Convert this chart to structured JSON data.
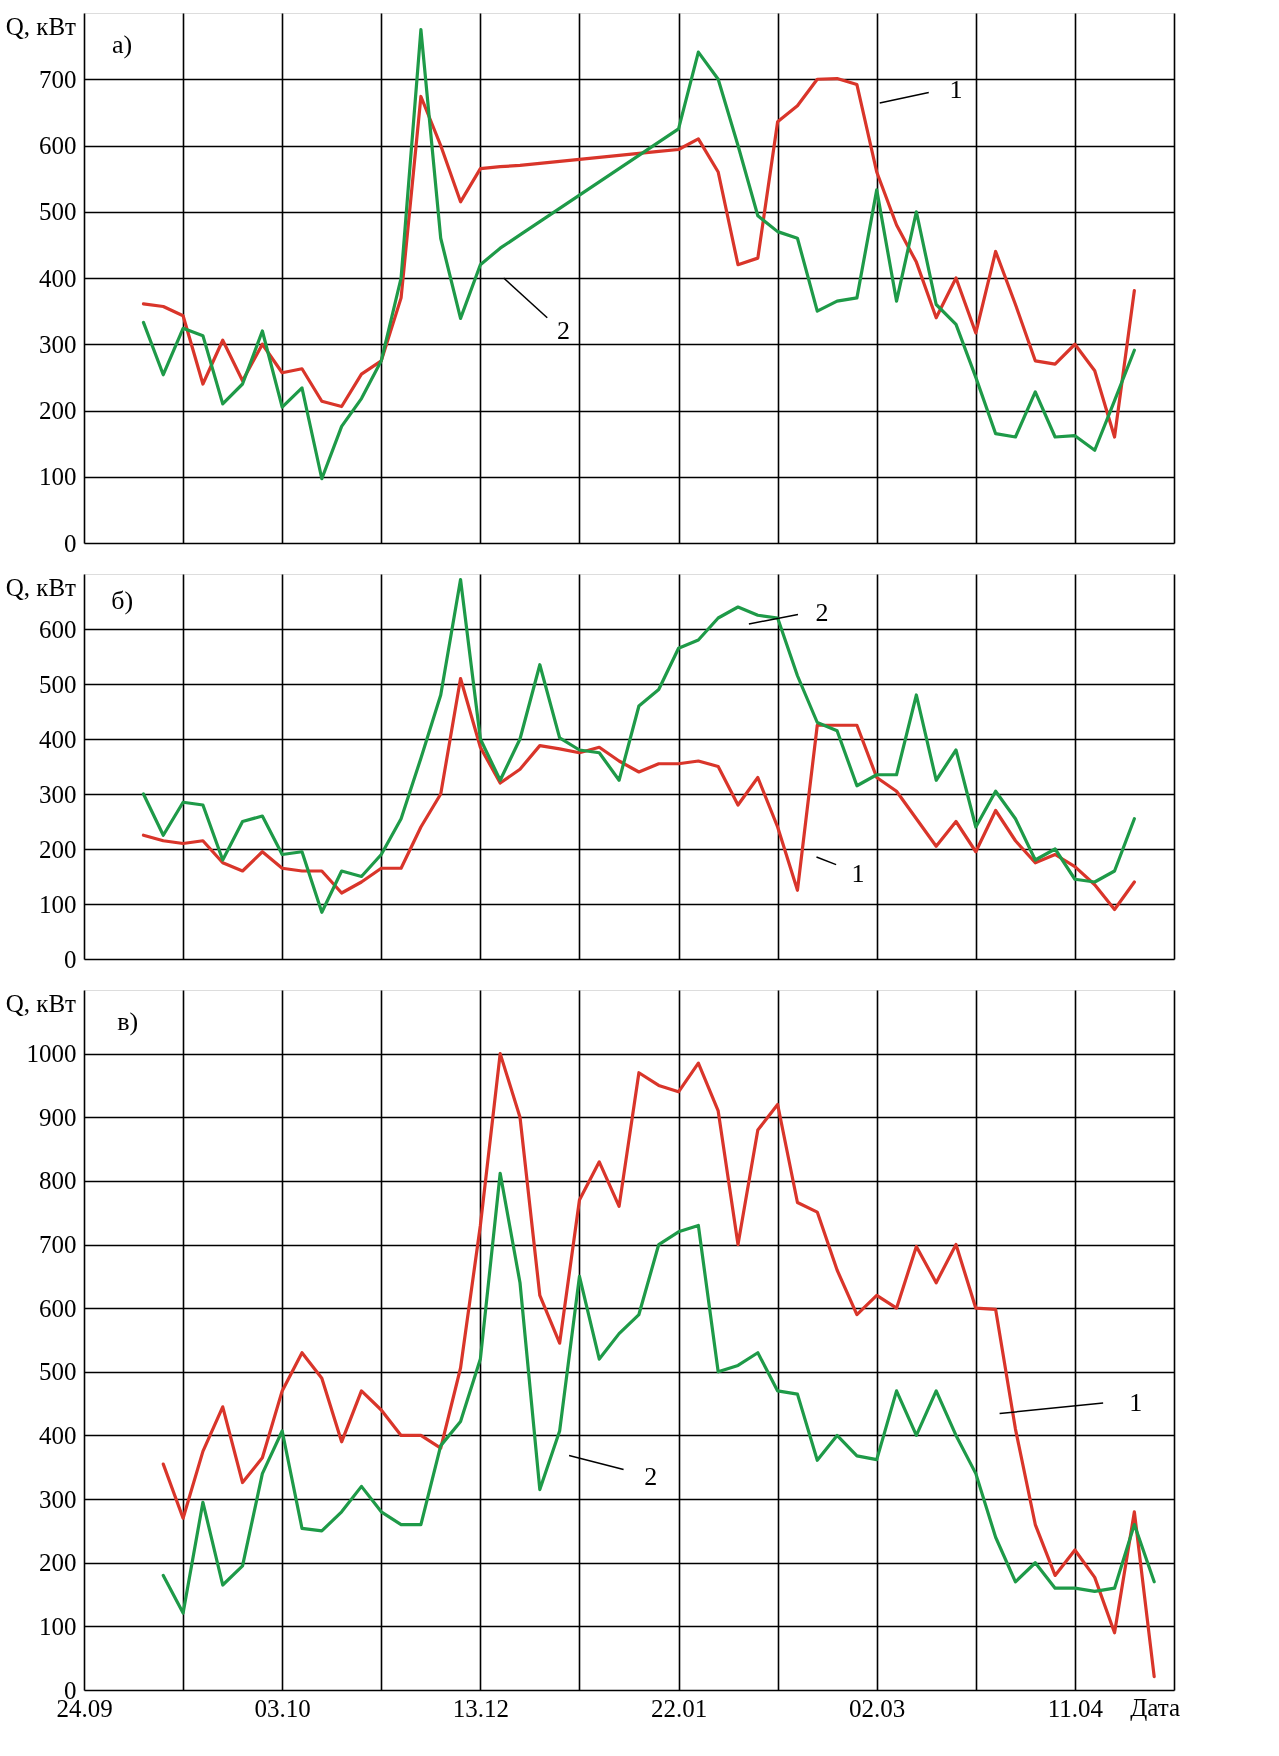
{
  "chart_data": [
    {
      "type": "line",
      "ylabel": "Q, кВт",
      "categories": [
        "24.09",
        null,
        null,
        null,
        null,
        null,
        null,
        null,
        null,
        null,
        "03.10",
        null,
        null,
        null,
        null,
        null,
        null,
        null,
        null,
        null,
        "13.12",
        null,
        null,
        null,
        null,
        null,
        null,
        null,
        null,
        null,
        "22.01",
        null,
        null,
        null,
        null,
        null,
        null,
        null,
        null,
        null,
        "02.03",
        null,
        null,
        null,
        null,
        null,
        null,
        null,
        null,
        null,
        "11.04",
        null,
        null,
        null,
        null,
        null
      ],
      "ylim": [
        0,
        800
      ],
      "yticks": [
        0,
        100,
        200,
        300,
        400,
        500,
        600,
        700
      ],
      "grid": true,
      "tick_labels": "y",
      "annotations": [
        "а)",
        "1",
        "2"
      ],
      "series": [
        {
          "color": "#d9352a",
          "values": [
            null,
            null,
            null,
            361,
            357,
            343,
            240,
            306,
            245,
            300,
            257,
            263,
            214,
            206,
            255,
            275,
            370,
            674,
            600,
            515,
            565,
            568,
            570,
            573,
            576,
            579,
            582,
            585,
            588,
            591,
            594,
            610,
            560,
            420,
            430,
            636,
            660,
            700,
            701,
            692,
            560,
            480,
            424,
            340,
            400,
            317,
            440,
            360,
            275,
            270,
            300,
            260,
            160,
            381,
            null,
            null
          ]
        },
        {
          "color": "#1e9a48",
          "values": [
            null,
            null,
            null,
            333,
            254,
            324,
            313,
            210,
            240,
            320,
            205,
            234,
            97,
            176,
            218,
            275,
            400,
            775,
            460,
            339,
            420,
            445,
            465,
            485,
            505,
            525,
            545,
            565,
            585,
            605,
            625,
            741,
            700,
            600,
            494,
            470,
            460,
            350,
            365,
            370,
            533,
            365,
            500,
            360,
            330,
            250,
            165,
            160,
            228,
            160,
            162,
            140,
            215,
            291,
            null,
            null
          ]
        }
      ]
    },
    {
      "type": "line",
      "ylabel": "Q, кВт",
      "categories": [
        "24.09",
        null,
        null,
        null,
        null,
        null,
        null,
        null,
        null,
        null,
        "03.10",
        null,
        null,
        null,
        null,
        null,
        null,
        null,
        null,
        null,
        "13.12",
        null,
        null,
        null,
        null,
        null,
        null,
        null,
        null,
        null,
        "22.01",
        null,
        null,
        null,
        null,
        null,
        null,
        null,
        null,
        null,
        "02.03",
        null,
        null,
        null,
        null,
        null,
        null,
        null,
        null,
        null,
        "11.04",
        null,
        null,
        null,
        null,
        null
      ],
      "ylim": [
        0,
        700
      ],
      "yticks": [
        0,
        100,
        200,
        300,
        400,
        500,
        600
      ],
      "grid": true,
      "tick_labels": "y",
      "annotations": [
        "б)",
        "2",
        "1"
      ],
      "series": [
        {
          "color": "#d9352a",
          "values": [
            null,
            null,
            null,
            225,
            215,
            210,
            215,
            175,
            160,
            195,
            165,
            160,
            160,
            120,
            140,
            165,
            165,
            240,
            300,
            510,
            385,
            320,
            345,
            388,
            382,
            375,
            385,
            360,
            340,
            355,
            355,
            360,
            350,
            280,
            330,
            240,
            125,
            425,
            425,
            425,
            330,
            305,
            255,
            205,
            250,
            195,
            270,
            215,
            175,
            190,
            168,
            135,
            90,
            140,
            null,
            null
          ]
        },
        {
          "color": "#1e9a48",
          "values": [
            null,
            null,
            null,
            300,
            225,
            285,
            280,
            180,
            250,
            260,
            190,
            195,
            85,
            160,
            150,
            190,
            255,
            365,
            480,
            690,
            400,
            325,
            400,
            535,
            402,
            380,
            375,
            325,
            460,
            490,
            565,
            580,
            620,
            640,
            625,
            620,
            515,
            430,
            415,
            315,
            335,
            335,
            480,
            325,
            380,
            240,
            305,
            255,
            180,
            200,
            145,
            140,
            160,
            255,
            null,
            null
          ]
        }
      ]
    },
    {
      "type": "line",
      "ylabel": "Q, кВт",
      "xlabel": "Дата",
      "categories": [
        "24.09",
        null,
        null,
        null,
        null,
        null,
        null,
        null,
        null,
        null,
        "03.10",
        null,
        null,
        null,
        null,
        null,
        null,
        null,
        null,
        null,
        "13.12",
        null,
        null,
        null,
        null,
        null,
        null,
        null,
        null,
        null,
        "22.01",
        null,
        null,
        null,
        null,
        null,
        null,
        null,
        null,
        null,
        "02.03",
        null,
        null,
        null,
        null,
        null,
        null,
        null,
        null,
        null,
        "11.04",
        null,
        null,
        null,
        null,
        null
      ],
      "ylim": [
        0,
        1100
      ],
      "yticks": [
        0,
        100,
        200,
        300,
        400,
        500,
        600,
        700,
        800,
        900,
        1000
      ],
      "grid": true,
      "annotations": [
        "в)",
        "1",
        "2"
      ],
      "series": [
        {
          "color": "#d9352a",
          "values": [
            null,
            null,
            null,
            null,
            355,
            270,
            375,
            445,
            326,
            365,
            470,
            530,
            490,
            390,
            470,
            440,
            400,
            400,
            380,
            506,
            730,
            1000,
            900,
            620,
            545,
            770,
            830,
            760,
            970,
            950,
            940,
            985,
            910,
            700,
            880,
            920,
            766,
            751,
            660,
            590,
            620,
            600,
            697,
            640,
            700,
            600,
            598,
            410,
            260,
            180,
            220,
            177,
            90,
            280,
            21,
            null
          ]
        },
        {
          "color": "#1e9a48",
          "values": [
            null,
            null,
            null,
            null,
            180,
            121,
            295,
            165,
            195,
            340,
            407,
            254,
            250,
            280,
            320,
            280,
            260,
            260,
            384,
            422,
            520,
            812,
            640,
            315,
            407,
            650,
            520,
            560,
            590,
            700,
            720,
            730,
            500,
            510,
            530,
            470,
            465,
            361,
            400,
            368,
            362,
            470,
            400,
            470,
            400,
            340,
            240,
            170,
            200,
            160,
            160,
            155,
            160,
            260,
            170,
            null
          ]
        }
      ]
    }
  ]
}
